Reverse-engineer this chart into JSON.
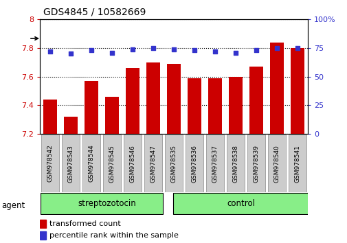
{
  "title": "GDS4845 / 10582669",
  "samples": [
    "GSM978542",
    "GSM978543",
    "GSM978544",
    "GSM978545",
    "GSM978546",
    "GSM978547",
    "GSM978535",
    "GSM978536",
    "GSM978537",
    "GSM978538",
    "GSM978539",
    "GSM978540",
    "GSM978541"
  ],
  "bar_values": [
    7.44,
    7.32,
    7.57,
    7.46,
    7.66,
    7.7,
    7.69,
    7.59,
    7.59,
    7.6,
    7.67,
    7.84,
    7.8
  ],
  "percentile_values": [
    72,
    70,
    73,
    71,
    74,
    75,
    74,
    73,
    72,
    71,
    73,
    75,
    75
  ],
  "bar_color": "#cc0000",
  "dot_color": "#3333cc",
  "ylim_left": [
    7.2,
    8.0
  ],
  "ylim_right": [
    0,
    100
  ],
  "yticks_left": [
    7.2,
    7.4,
    7.6,
    7.8,
    8.0
  ],
  "ytick_labels_left": [
    "7.2",
    "7.4",
    "7.6",
    "7.8",
    "8"
  ],
  "yticks_right": [
    0,
    25,
    50,
    75,
    100
  ],
  "ytick_labels_right": [
    "0",
    "25",
    "50",
    "75",
    "100%"
  ],
  "group1_label": "streptozotocin",
  "group2_label": "control",
  "group1_count": 6,
  "group2_count": 7,
  "agent_label": "agent",
  "legend_bar_label": "transformed count",
  "legend_dot_label": "percentile rank within the sample",
  "background_color": "#ffffff",
  "plot_bg_color": "#ffffff",
  "group_fill_color": "#88ee88",
  "sample_bg_color": "#cccccc"
}
